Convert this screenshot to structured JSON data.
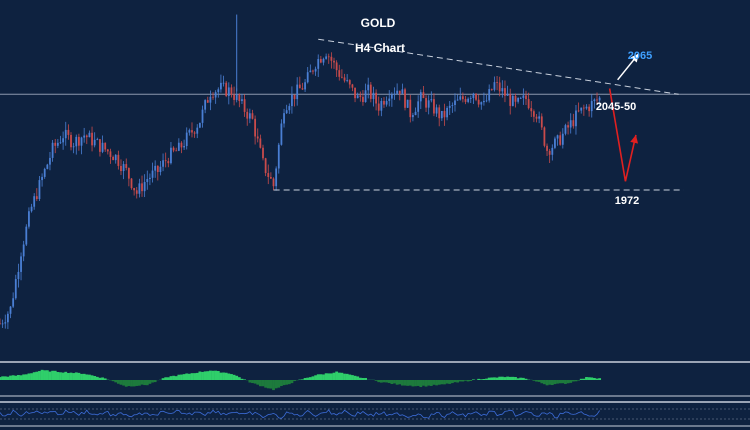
{
  "chart_data": {
    "type": "candlestick",
    "title": "GOLD",
    "subtitle": "H4 Chart",
    "annotations": {
      "target_high": "2065",
      "resistance": "2045-50",
      "support": "1972"
    },
    "levels": {
      "horizontal_line": 2038,
      "support": 1972,
      "resistance": 2050,
      "target": 2065
    },
    "trendlines": [
      {
        "name": "descending-resistance",
        "from": [
          121,
          2076
        ],
        "to": [
          255,
          2038
        ]
      },
      {
        "name": "support-line",
        "from": [
          101,
          1972
        ],
        "to": [
          255,
          1972
        ]
      }
    ],
    "price_path": [
      [
        0,
        1880
      ],
      [
        4,
        1890
      ],
      [
        8,
        1930
      ],
      [
        12,
        1960
      ],
      [
        16,
        1980
      ],
      [
        20,
        2000
      ],
      [
        24,
        2010
      ],
      [
        28,
        2005
      ],
      [
        32,
        2010
      ],
      [
        36,
        2005
      ],
      [
        40,
        2000
      ],
      [
        44,
        1995
      ],
      [
        48,
        1985
      ],
      [
        52,
        1970
      ],
      [
        56,
        1980
      ],
      [
        60,
        1985
      ],
      [
        64,
        1995
      ],
      [
        68,
        2000
      ],
      [
        72,
        2010
      ],
      [
        76,
        2020
      ],
      [
        80,
        2040
      ],
      [
        84,
        2042
      ],
      [
        88,
        2040
      ],
      [
        92,
        2030
      ],
      [
        96,
        2020
      ],
      [
        100,
        1990
      ],
      [
        104,
        1975
      ],
      [
        108,
        2030
      ],
      [
        112,
        2038
      ],
      [
        116,
        2045
      ],
      [
        120,
        2060
      ],
      [
        124,
        2068
      ],
      [
        128,
        2055
      ],
      [
        132,
        2045
      ],
      [
        136,
        2035
      ],
      [
        140,
        2040
      ],
      [
        144,
        2030
      ],
      [
        148,
        2040
      ],
      [
        152,
        2042
      ],
      [
        156,
        2025
      ],
      [
        160,
        2035
      ],
      [
        164,
        2030
      ],
      [
        168,
        2022
      ],
      [
        172,
        2030
      ],
      [
        176,
        2035
      ],
      [
        180,
        2040
      ],
      [
        184,
        2030
      ],
      [
        188,
        2045
      ],
      [
        192,
        2038
      ],
      [
        196,
        2030
      ],
      [
        200,
        2035
      ],
      [
        204,
        2025
      ],
      [
        208,
        2000
      ],
      [
        212,
        2005
      ],
      [
        216,
        2015
      ],
      [
        220,
        2025
      ],
      [
        224,
        2030
      ],
      [
        228,
        2035
      ]
    ],
    "forecast_path": [
      [
        228,
        2042
      ],
      [
        234,
        1978
      ],
      [
        238,
        2010
      ]
    ],
    "forecast_up": [
      [
        228,
        2048
      ],
      [
        236,
        2066
      ]
    ],
    "oscillator": [
      [
        0,
        2
      ],
      [
        8,
        3
      ],
      [
        16,
        6
      ],
      [
        24,
        5
      ],
      [
        32,
        4
      ],
      [
        40,
        1
      ],
      [
        48,
        -4
      ],
      [
        56,
        -3
      ],
      [
        64,
        2
      ],
      [
        72,
        4
      ],
      [
        80,
        6
      ],
      [
        88,
        4
      ],
      [
        96,
        -2
      ],
      [
        104,
        -6
      ],
      [
        112,
        -1
      ],
      [
        120,
        3
      ],
      [
        128,
        5
      ],
      [
        136,
        2
      ],
      [
        144,
        -1
      ],
      [
        152,
        -3
      ],
      [
        160,
        -4
      ],
      [
        168,
        -3
      ],
      [
        176,
        -1
      ],
      [
        184,
        1
      ],
      [
        192,
        2
      ],
      [
        200,
        1
      ],
      [
        208,
        -3
      ],
      [
        216,
        -2
      ],
      [
        224,
        2
      ],
      [
        228,
        1
      ]
    ],
    "colors": {
      "background": "#0e2240",
      "candle_bull": "#4a7fd4",
      "candle_bear": "#c94b4b",
      "title": "#ffffff",
      "target_label": "#3fa0ff",
      "forecast_up_arrow": "#ffffff",
      "forecast_down_arrow": "#e02020",
      "oscillator_pos": "#2fcf6a",
      "oscillator_neg": "#1d7a3c",
      "rsi_line": "#3c6cd8"
    },
    "grid": false
  }
}
